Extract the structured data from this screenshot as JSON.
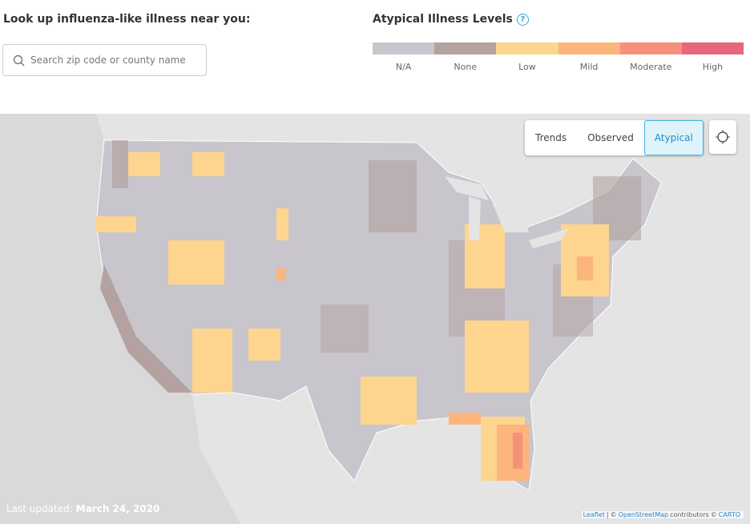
{
  "header": {
    "title": "Look up influenza-like illness near you:",
    "search_placeholder": "Search zip code or county name"
  },
  "legend": {
    "title": "Atypical Illness Levels",
    "help": "?",
    "levels": [
      {
        "label": "N/A",
        "color": "#c8c5cd"
      },
      {
        "label": "None",
        "color": "#b3a29f"
      },
      {
        "label": "Low",
        "color": "#fdd58e"
      },
      {
        "label": "Mild",
        "color": "#fcb57b"
      },
      {
        "label": "Moderate",
        "color": "#f6907b"
      },
      {
        "label": "High",
        "color": "#e6667a"
      }
    ]
  },
  "map": {
    "view_buttons": [
      "Trends",
      "Observed",
      "Atypical"
    ],
    "active_view": "Atypical",
    "last_updated_label": "Last updated:",
    "last_updated_date": "March 24, 2020",
    "attribution": [
      "Leaflet",
      "|",
      "©",
      "OpenStreetMap",
      "contributors",
      "©",
      "CARTO"
    ]
  }
}
